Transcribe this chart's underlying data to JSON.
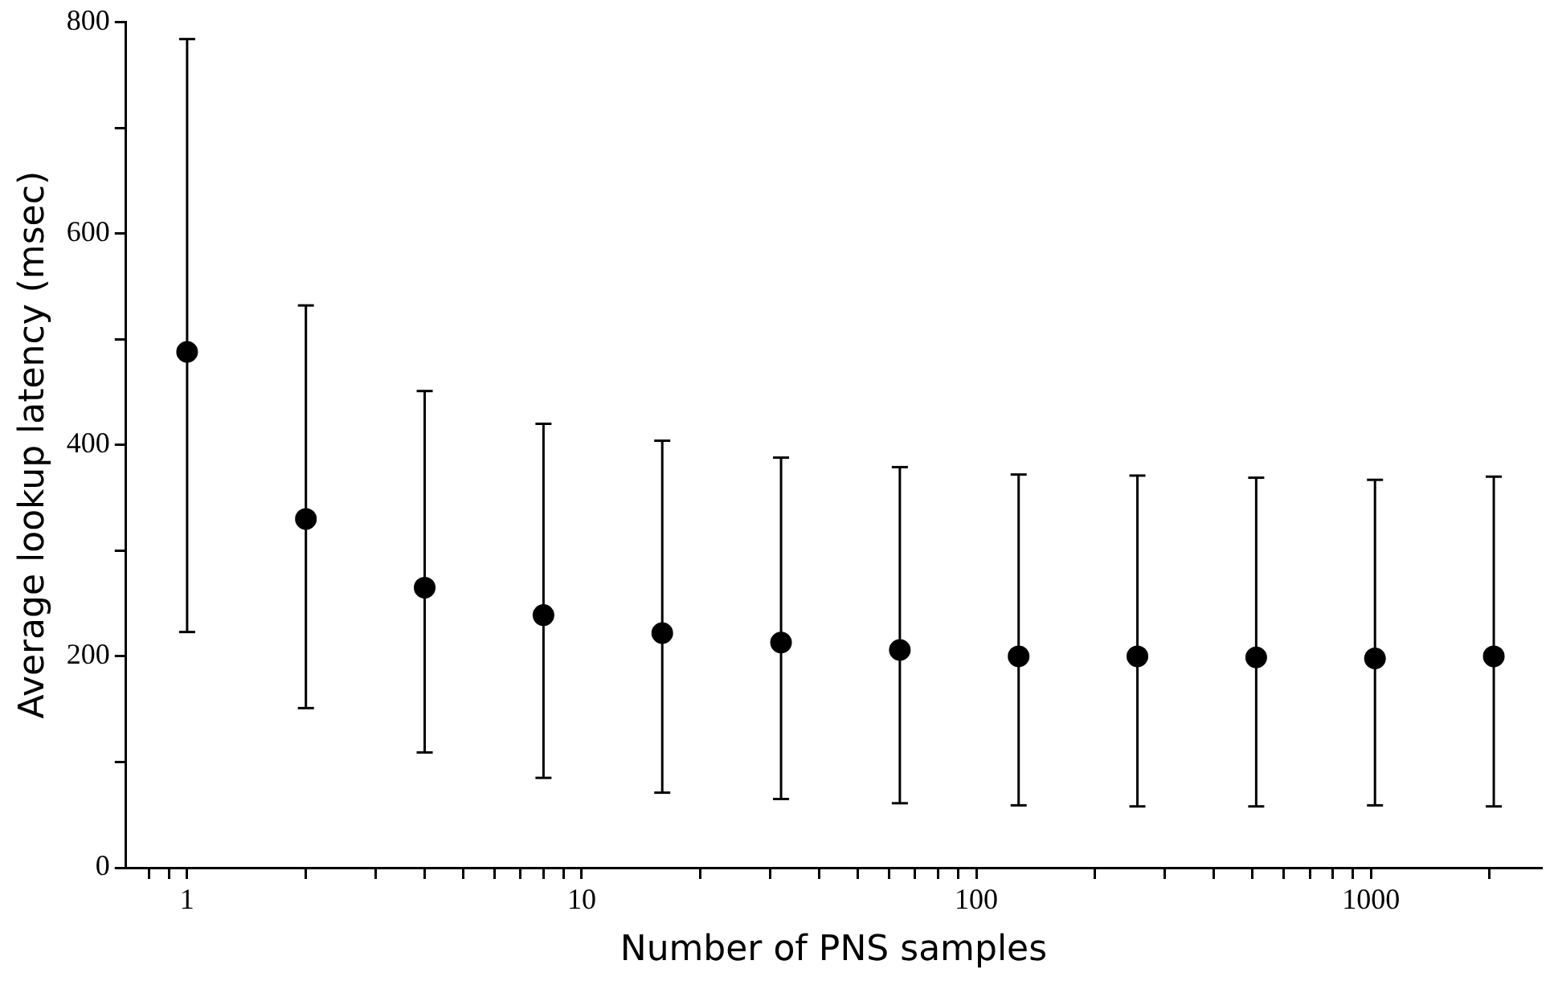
{
  "chart_data": {
    "type": "scatter",
    "xlabel": "Number of PNS samples",
    "ylabel": "Average lookup latency (msec)",
    "log": "x",
    "marker": "circle",
    "color": "#000000",
    "x": [
      1,
      2,
      4,
      8,
      16,
      32,
      64,
      128,
      256,
      512,
      1024,
      2048
    ],
    "values": [
      488,
      330,
      265,
      239,
      222,
      213,
      206,
      200,
      200,
      199,
      198,
      200
    ],
    "errors": [
      [
        223,
        784
      ],
      [
        151,
        532
      ],
      [
        109,
        451
      ],
      [
        85,
        420
      ],
      [
        71,
        404
      ],
      [
        65,
        388
      ],
      [
        61,
        379
      ],
      [
        59,
        372
      ],
      [
        58,
        371
      ],
      [
        58,
        369
      ],
      [
        59,
        367
      ],
      [
        58,
        370
      ]
    ],
    "xlim": [
      0.7,
      2700
    ],
    "ylim": [
      0,
      800
    ],
    "xticks": [
      {
        "value": 0.8,
        "label": null
      },
      {
        "value": 0.9,
        "label": null
      },
      1,
      {
        "value": 2,
        "label": null
      },
      {
        "value": 3,
        "label": null
      },
      {
        "value": 4,
        "label": null
      },
      {
        "value": 5,
        "label": null
      },
      {
        "value": 6,
        "label": null
      },
      {
        "value": 7,
        "label": null
      },
      {
        "value": 8,
        "label": null
      },
      {
        "value": 9,
        "label": null
      },
      10,
      {
        "value": 20,
        "label": null
      },
      {
        "value": 30,
        "label": null
      },
      {
        "value": 40,
        "label": null
      },
      {
        "value": 50,
        "label": null
      },
      {
        "value": 60,
        "label": null
      },
      {
        "value": 70,
        "label": null
      },
      {
        "value": 80,
        "label": null
      },
      {
        "value": 90,
        "label": null
      },
      100,
      {
        "value": 200,
        "label": null
      },
      {
        "value": 300,
        "label": null
      },
      {
        "value": 400,
        "label": null
      },
      {
        "value": 500,
        "label": null
      },
      {
        "value": 600,
        "label": null
      },
      {
        "value": 700,
        "label": null
      },
      {
        "value": 800,
        "label": null
      },
      {
        "value": 900,
        "label": null
      },
      1000,
      {
        "value": 2000,
        "label": null
      }
    ],
    "yticks": [
      0,
      {
        "value": 100,
        "label": null
      },
      200,
      {
        "value": 300,
        "label": null
      },
      400,
      {
        "value": 500,
        "label": null
      },
      600,
      {
        "value": 700,
        "label": null
      },
      800
    ]
  }
}
